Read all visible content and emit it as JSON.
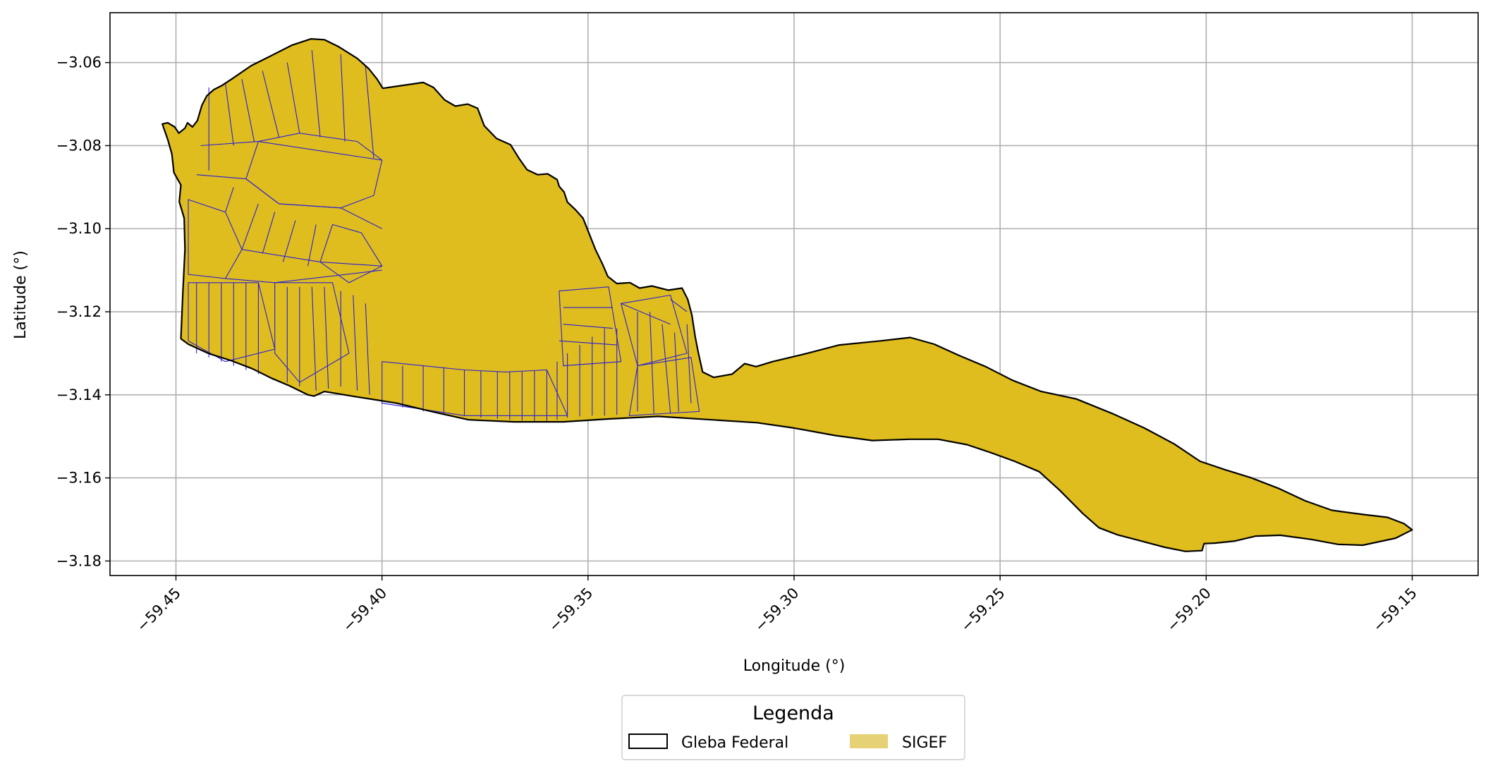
{
  "chart_data": {
    "type": "map",
    "xlabel": "Longitude (°)",
    "ylabel": "Latitude (°)",
    "xlim": [
      -59.466,
      -59.134
    ],
    "ylim": [
      -3.1835,
      -3.048
    ],
    "grid": true,
    "x_ticks": [
      -59.45,
      -59.4,
      -59.35,
      -59.3,
      -59.25,
      -59.2,
      -59.15
    ],
    "x_tick_labels": [
      "−59.45",
      "−59.40",
      "−59.35",
      "−59.30",
      "−59.25",
      "−59.20",
      "−59.15"
    ],
    "y_ticks": [
      -3.06,
      -3.08,
      -3.1,
      -3.12,
      -3.14,
      -3.16,
      -3.18
    ],
    "y_tick_labels": [
      "−3.06",
      "−3.08",
      "−3.10",
      "−3.12",
      "−3.14",
      "−3.16",
      "−3.18"
    ],
    "legend": {
      "title": "Legenda",
      "placement": "bottom-center",
      "entries": [
        {
          "label": "Gleba Federal",
          "style": "outline"
        },
        {
          "label": "SIGEF",
          "style": "fill"
        }
      ]
    },
    "colors": {
      "gleba_outline": "#000000",
      "sigef_fill": "#dfbd1f",
      "sigef_legend_fill": "#e6d274",
      "parcel_lines": "#2b1fd6",
      "grid": "#b0b0b0"
    },
    "gleba_boundary": [
      [
        -59.4533,
        -3.0748
      ],
      [
        -59.452,
        -3.0745
      ],
      [
        -59.4503,
        -3.0755
      ],
      [
        -59.4493,
        -3.077
      ],
      [
        -59.4478,
        -3.0758
      ],
      [
        -59.4472,
        -3.0745
      ],
      [
        -59.446,
        -3.0755
      ],
      [
        -59.4448,
        -3.074
      ],
      [
        -59.4437,
        -3.0703
      ],
      [
        -59.4425,
        -3.068
      ],
      [
        -59.4408,
        -3.0665
      ],
      [
        -59.4388,
        -3.0655
      ],
      [
        -59.4362,
        -3.0638
      ],
      [
        -59.4318,
        -3.0608
      ],
      [
        -59.4268,
        -3.0583
      ],
      [
        -59.4218,
        -3.0558
      ],
      [
        -59.4172,
        -3.0543
      ],
      [
        -59.414,
        -3.0545
      ],
      [
        -59.4105,
        -3.0562
      ],
      [
        -59.406,
        -3.059
      ],
      [
        -59.4032,
        -3.0615
      ],
      [
        -59.4012,
        -3.064
      ],
      [
        -59.3998,
        -3.0662
      ],
      [
        -59.395,
        -3.0655
      ],
      [
        -59.39,
        -3.0648
      ],
      [
        -59.3875,
        -3.066
      ],
      [
        -59.3848,
        -3.069
      ],
      [
        -59.3822,
        -3.0705
      ],
      [
        -59.3792,
        -3.07
      ],
      [
        -59.3768,
        -3.071
      ],
      [
        -59.3752,
        -3.0752
      ],
      [
        -59.3722,
        -3.0783
      ],
      [
        -59.3688,
        -3.0798
      ],
      [
        -59.3668,
        -3.083
      ],
      [
        -59.3648,
        -3.0858
      ],
      [
        -59.3622,
        -3.087
      ],
      [
        -59.3598,
        -3.0868
      ],
      [
        -59.3575,
        -3.0882
      ],
      [
        -59.357,
        -3.0898
      ],
      [
        -59.3558,
        -3.0912
      ],
      [
        -59.355,
        -3.0936
      ],
      [
        -59.353,
        -3.0955
      ],
      [
        -59.3512,
        -3.0975
      ],
      [
        -59.35,
        -3.1005
      ],
      [
        -59.3482,
        -3.105
      ],
      [
        -59.3465,
        -3.1085
      ],
      [
        -59.3452,
        -3.1115
      ],
      [
        -59.343,
        -3.1132
      ],
      [
        -59.3398,
        -3.113
      ],
      [
        -59.3375,
        -3.1143
      ],
      [
        -59.3345,
        -3.1138
      ],
      [
        -59.3305,
        -3.1148
      ],
      [
        -59.3272,
        -3.1143
      ],
      [
        -59.3258,
        -3.117
      ],
      [
        -59.3248,
        -3.1208
      ],
      [
        -59.324,
        -3.126
      ],
      [
        -59.3232,
        -3.13
      ],
      [
        -59.3222,
        -3.1345
      ],
      [
        -59.3195,
        -3.1358
      ],
      [
        -59.315,
        -3.135
      ],
      [
        -59.312,
        -3.1325
      ],
      [
        -59.3092,
        -3.1332
      ],
      [
        -59.3052,
        -3.132
      ],
      [
        -59.298,
        -3.1303
      ],
      [
        -59.289,
        -3.128
      ],
      [
        -59.279,
        -3.127
      ],
      [
        -59.2718,
        -3.1262
      ],
      [
        -59.266,
        -3.1278
      ],
      [
        -59.26,
        -3.1305
      ],
      [
        -59.2535,
        -3.1332
      ],
      [
        -59.247,
        -3.1365
      ],
      [
        -59.24,
        -3.1392
      ],
      [
        -59.2315,
        -3.141
      ],
      [
        -59.2228,
        -3.1445
      ],
      [
        -59.215,
        -3.148
      ],
      [
        -59.2078,
        -3.1518
      ],
      [
        -59.2015,
        -3.156
      ],
      [
        -59.1955,
        -3.158
      ],
      [
        -59.189,
        -3.16
      ],
      [
        -59.1825,
        -3.1625
      ],
      [
        -59.176,
        -3.1655
      ],
      [
        -59.1695,
        -3.1678
      ],
      [
        -59.162,
        -3.1688
      ],
      [
        -59.156,
        -3.1695
      ],
      [
        -59.152,
        -3.171
      ],
      [
        -59.15,
        -3.1725
      ],
      [
        -59.154,
        -3.1745
      ],
      [
        -59.162,
        -3.1762
      ],
      [
        -59.168,
        -3.176
      ],
      [
        -59.1745,
        -3.1748
      ],
      [
        -59.182,
        -3.1738
      ],
      [
        -59.188,
        -3.174
      ],
      [
        -59.193,
        -3.1752
      ],
      [
        -59.198,
        -3.1757
      ],
      [
        -59.2005,
        -3.1758
      ],
      [
        -59.201,
        -3.1775
      ],
      [
        -59.205,
        -3.1777
      ],
      [
        -59.21,
        -3.1767
      ],
      [
        -59.2165,
        -3.175
      ],
      [
        -59.2215,
        -3.1737
      ],
      [
        -59.226,
        -3.172
      ],
      [
        -59.23,
        -3.1685
      ],
      [
        -59.2355,
        -3.163
      ],
      [
        -59.2405,
        -3.1585
      ],
      [
        -59.2465,
        -3.156
      ],
      [
        -59.252,
        -3.154
      ],
      [
        -59.258,
        -3.152
      ],
      [
        -59.265,
        -3.1507
      ],
      [
        -59.272,
        -3.1507
      ],
      [
        -59.281,
        -3.151
      ],
      [
        -59.29,
        -3.1498
      ],
      [
        -59.3,
        -3.148
      ],
      [
        -59.309,
        -3.1467
      ],
      [
        -59.32,
        -3.146
      ],
      [
        -59.333,
        -3.1452
      ],
      [
        -59.345,
        -3.1458
      ],
      [
        -59.356,
        -3.1465
      ],
      [
        -59.368,
        -3.1465
      ],
      [
        -59.379,
        -3.146
      ],
      [
        -59.388,
        -3.144
      ],
      [
        -59.3965,
        -3.142
      ],
      [
        -59.406,
        -3.1405
      ],
      [
        -59.414,
        -3.1392
      ],
      [
        -59.4165,
        -3.1403
      ],
      [
        -59.418,
        -3.14
      ],
      [
        -59.4225,
        -3.1378
      ],
      [
        -59.4268,
        -3.136
      ],
      [
        -59.4315,
        -3.1337
      ],
      [
        -59.4365,
        -3.1318
      ],
      [
        -59.4422,
        -3.13
      ],
      [
        -59.447,
        -3.1278
      ],
      [
        -59.4488,
        -3.1265
      ],
      [
        -59.4483,
        -3.115
      ],
      [
        -59.4478,
        -3.105
      ],
      [
        -59.448,
        -3.0975
      ],
      [
        -59.4492,
        -3.0935
      ],
      [
        -59.4488,
        -3.0895
      ],
      [
        -59.4505,
        -3.0865
      ],
      [
        -59.451,
        -3.082
      ],
      [
        -59.452,
        -3.0785
      ]
    ],
    "sigef_parcels": [
      [
        [
          -59.43,
          -3.079
        ],
        [
          -59.42,
          -3.077
        ],
        [
          -59.406,
          -3.079
        ],
        [
          -59.4,
          -3.0835
        ],
        [
          -59.402,
          -3.092
        ],
        [
          -59.41,
          -3.095
        ],
        [
          -59.425,
          -3.094
        ],
        [
          -59.433,
          -3.088
        ]
      ],
      [
        [
          -59.447,
          -3.093
        ],
        [
          -59.438,
          -3.096
        ],
        [
          -59.434,
          -3.105
        ],
        [
          -59.438,
          -3.112
        ],
        [
          -59.447,
          -3.111
        ]
      ],
      [
        [
          -59.447,
          -3.113
        ],
        [
          -59.43,
          -3.113
        ],
        [
          -59.426,
          -3.129
        ],
        [
          -59.438,
          -3.132
        ],
        [
          -59.447,
          -3.127
        ]
      ],
      [
        [
          -59.426,
          -3.113
        ],
        [
          -59.412,
          -3.113
        ],
        [
          -59.408,
          -3.13
        ],
        [
          -59.42,
          -3.137
        ],
        [
          -59.426,
          -3.13
        ]
      ],
      [
        [
          -59.4,
          -3.132
        ],
        [
          -59.39,
          -3.133
        ],
        [
          -59.38,
          -3.134
        ],
        [
          -59.37,
          -3.1345
        ],
        [
          -59.36,
          -3.134
        ],
        [
          -59.355,
          -3.145
        ],
        [
          -59.38,
          -3.145
        ],
        [
          -59.4,
          -3.142
        ]
      ],
      [
        [
          -59.357,
          -3.115
        ],
        [
          -59.345,
          -3.114
        ],
        [
          -59.342,
          -3.132
        ],
        [
          -59.356,
          -3.133
        ]
      ],
      [
        [
          -59.342,
          -3.118
        ],
        [
          -59.33,
          -3.116
        ],
        [
          -59.326,
          -3.13
        ],
        [
          -59.338,
          -3.133
        ]
      ],
      [
        [
          -59.338,
          -3.133
        ],
        [
          -59.325,
          -3.131
        ],
        [
          -59.323,
          -3.144
        ],
        [
          -59.34,
          -3.145
        ]
      ],
      [
        [
          -59.412,
          -3.099
        ],
        [
          -59.405,
          -3.101
        ],
        [
          -59.4,
          -3.109
        ],
        [
          -59.408,
          -3.113
        ],
        [
          -59.415,
          -3.108
        ]
      ]
    ],
    "parcel_lines": [
      [
        [
          -59.442,
          -3.066
        ],
        [
          -59.442,
          -3.086
        ]
      ],
      [
        [
          -59.438,
          -3.065
        ],
        [
          -59.436,
          -3.08
        ]
      ],
      [
        [
          -59.434,
          -3.064
        ],
        [
          -59.431,
          -3.079
        ]
      ],
      [
        [
          -59.429,
          -3.062
        ],
        [
          -59.425,
          -3.078
        ]
      ],
      [
        [
          -59.423,
          -3.06
        ],
        [
          -59.42,
          -3.077
        ]
      ],
      [
        [
          -59.417,
          -3.057
        ],
        [
          -59.415,
          -3.078
        ]
      ],
      [
        [
          -59.41,
          -3.058
        ],
        [
          -59.409,
          -3.079
        ]
      ],
      [
        [
          -59.404,
          -3.061
        ],
        [
          -59.402,
          -3.083
        ]
      ],
      [
        [
          -59.444,
          -3.08
        ],
        [
          -59.43,
          -3.079
        ]
      ],
      [
        [
          -59.43,
          -3.079
        ],
        [
          -59.4,
          -3.0835
        ]
      ],
      [
        [
          -59.445,
          -3.087
        ],
        [
          -59.433,
          -3.088
        ]
      ],
      [
        [
          -59.433,
          -3.088
        ],
        [
          -59.425,
          -3.094
        ]
      ],
      [
        [
          -59.425,
          -3.094
        ],
        [
          -59.41,
          -3.095
        ]
      ],
      [
        [
          -59.41,
          -3.095
        ],
        [
          -59.4,
          -3.1
        ]
      ],
      [
        [
          -59.436,
          -3.09
        ],
        [
          -59.438,
          -3.096
        ]
      ],
      [
        [
          -59.43,
          -3.094
        ],
        [
          -59.434,
          -3.105
        ]
      ],
      [
        [
          -59.426,
          -3.096
        ],
        [
          -59.429,
          -3.106
        ]
      ],
      [
        [
          -59.421,
          -3.098
        ],
        [
          -59.424,
          -3.108
        ]
      ],
      [
        [
          -59.416,
          -3.099
        ],
        [
          -59.418,
          -3.109
        ]
      ],
      [
        [
          -59.434,
          -3.105
        ],
        [
          -59.415,
          -3.108
        ]
      ],
      [
        [
          -59.415,
          -3.108
        ],
        [
          -59.4,
          -3.109
        ]
      ],
      [
        [
          -59.438,
          -3.112
        ],
        [
          -59.426,
          -3.113
        ]
      ],
      [
        [
          -59.426,
          -3.113
        ],
        [
          -59.4,
          -3.11
        ]
      ],
      [
        [
          -59.445,
          -3.113
        ],
        [
          -59.445,
          -3.13
        ]
      ],
      [
        [
          -59.442,
          -3.113
        ],
        [
          -59.442,
          -3.131
        ]
      ],
      [
        [
          -59.439,
          -3.113
        ],
        [
          -59.439,
          -3.132
        ]
      ],
      [
        [
          -59.436,
          -3.113
        ],
        [
          -59.436,
          -3.133
        ]
      ],
      [
        [
          -59.433,
          -3.113
        ],
        [
          -59.433,
          -3.134
        ]
      ],
      [
        [
          -59.43,
          -3.113
        ],
        [
          -59.43,
          -3.135
        ]
      ],
      [
        [
          -59.423,
          -3.114
        ],
        [
          -59.423,
          -3.137
        ]
      ],
      [
        [
          -59.42,
          -3.114
        ],
        [
          -59.42,
          -3.138
        ]
      ],
      [
        [
          -59.417,
          -3.114
        ],
        [
          -59.416,
          -3.139
        ]
      ],
      [
        [
          -59.414,
          -3.114
        ],
        [
          -59.413,
          -3.1385
        ]
      ],
      [
        [
          -59.41,
          -3.115
        ],
        [
          -59.41,
          -3.138
        ]
      ],
      [
        [
          -59.407,
          -3.116
        ],
        [
          -59.406,
          -3.139
        ]
      ],
      [
        [
          -59.404,
          -3.118
        ],
        [
          -59.403,
          -3.14
        ]
      ],
      [
        [
          -59.395,
          -3.133
        ],
        [
          -59.395,
          -3.143
        ]
      ],
      [
        [
          -59.39,
          -3.133
        ],
        [
          -59.39,
          -3.144
        ]
      ],
      [
        [
          -59.385,
          -3.1335
        ],
        [
          -59.385,
          -3.1445
        ]
      ],
      [
        [
          -59.38,
          -3.134
        ],
        [
          -59.38,
          -3.145
        ]
      ],
      [
        [
          -59.376,
          -3.1342
        ],
        [
          -59.376,
          -3.1455
        ]
      ],
      [
        [
          -59.372,
          -3.1345
        ],
        [
          -59.372,
          -3.1458
        ]
      ],
      [
        [
          -59.369,
          -3.1345
        ],
        [
          -59.369,
          -3.146
        ]
      ],
      [
        [
          -59.366,
          -3.1344
        ],
        [
          -59.366,
          -3.1462
        ]
      ],
      [
        [
          -59.363,
          -3.1342
        ],
        [
          -59.363,
          -3.1463
        ]
      ],
      [
        [
          -59.36,
          -3.134
        ],
        [
          -59.36,
          -3.1463
        ]
      ],
      [
        [
          -59.3575,
          -3.132
        ],
        [
          -59.3575,
          -3.146
        ]
      ],
      [
        [
          -59.355,
          -3.13
        ],
        [
          -59.355,
          -3.1455
        ]
      ],
      [
        [
          -59.352,
          -3.128
        ],
        [
          -59.352,
          -3.1452
        ]
      ],
      [
        [
          -59.349,
          -3.126
        ],
        [
          -59.349,
          -3.145
        ]
      ],
      [
        [
          -59.346,
          -3.124
        ],
        [
          -59.346,
          -3.145
        ]
      ],
      [
        [
          -59.343,
          -3.124
        ],
        [
          -59.343,
          -3.1448
        ]
      ],
      [
        [
          -59.356,
          -3.119
        ],
        [
          -59.344,
          -3.119
        ]
      ],
      [
        [
          -59.356,
          -3.123
        ],
        [
          -59.344,
          -3.124
        ]
      ],
      [
        [
          -59.357,
          -3.127
        ],
        [
          -59.343,
          -3.128
        ]
      ],
      [
        [
          -59.338,
          -3.12
        ],
        [
          -59.338,
          -3.144
        ]
      ],
      [
        [
          -59.335,
          -3.12
        ],
        [
          -59.334,
          -3.1445
        ]
      ],
      [
        [
          -59.332,
          -3.123
        ],
        [
          -59.33,
          -3.1445
        ]
      ],
      [
        [
          -59.329,
          -3.125
        ],
        [
          -59.328,
          -3.144
        ]
      ],
      [
        [
          -59.326,
          -3.123
        ],
        [
          -59.325,
          -3.142
        ]
      ],
      [
        [
          -59.33,
          -3.117
        ],
        [
          -59.326,
          -3.12
        ]
      ],
      [
        [
          -59.342,
          -3.118
        ],
        [
          -59.33,
          -3.123
        ]
      ]
    ]
  }
}
